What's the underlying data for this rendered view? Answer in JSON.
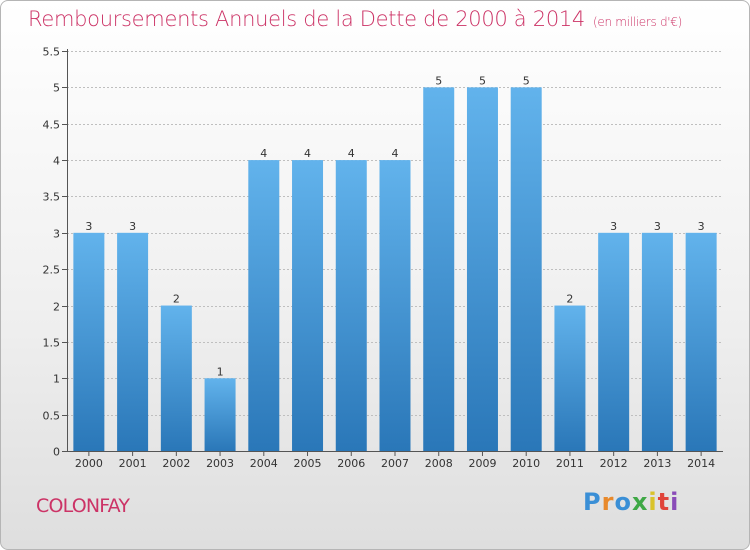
{
  "title": "Remboursements Annuels de la Dette de 2000 à 2014",
  "subtitle": "(en milliers d'€)",
  "commune": "COLONFAY",
  "logo": {
    "letters": [
      "P",
      "r",
      "o",
      "x",
      "i",
      "t",
      "i"
    ],
    "colors": [
      "#3a8fd6",
      "#e8892b",
      "#3a8fd6",
      "#3fa845",
      "#d9c32b",
      "#e0443a",
      "#8a4bb8"
    ]
  },
  "colors": {
    "bar_light": "#62b3ec",
    "bar_dark": "#2a77b8",
    "title": "#cc3366",
    "grid": "#bfbfbf",
    "axis": "#555555"
  },
  "chart_data": {
    "type": "bar",
    "title": "Remboursements Annuels de la Dette de 2000 à 2014",
    "subtitle": "(en milliers d'€)",
    "categories": [
      "2000",
      "2001",
      "2002",
      "2003",
      "2004",
      "2005",
      "2006",
      "2007",
      "2008",
      "2009",
      "2010",
      "2011",
      "2012",
      "2013",
      "2014"
    ],
    "values": [
      3,
      3,
      2,
      1,
      4,
      4,
      4,
      4,
      5,
      5,
      5,
      2,
      3,
      3,
      3
    ],
    "ylim": [
      0,
      5.5
    ],
    "yticks": [
      0,
      0.5,
      1,
      1.5,
      2,
      2.5,
      3,
      3.5,
      4,
      4.5,
      5,
      5.5
    ],
    "ytick_labels": [
      "0",
      "0.5",
      "1",
      "1.5",
      "2",
      "2.5",
      "3",
      "3.5",
      "4",
      "4.5",
      "5",
      "5.5"
    ],
    "grid": true,
    "data_labels": true
  }
}
